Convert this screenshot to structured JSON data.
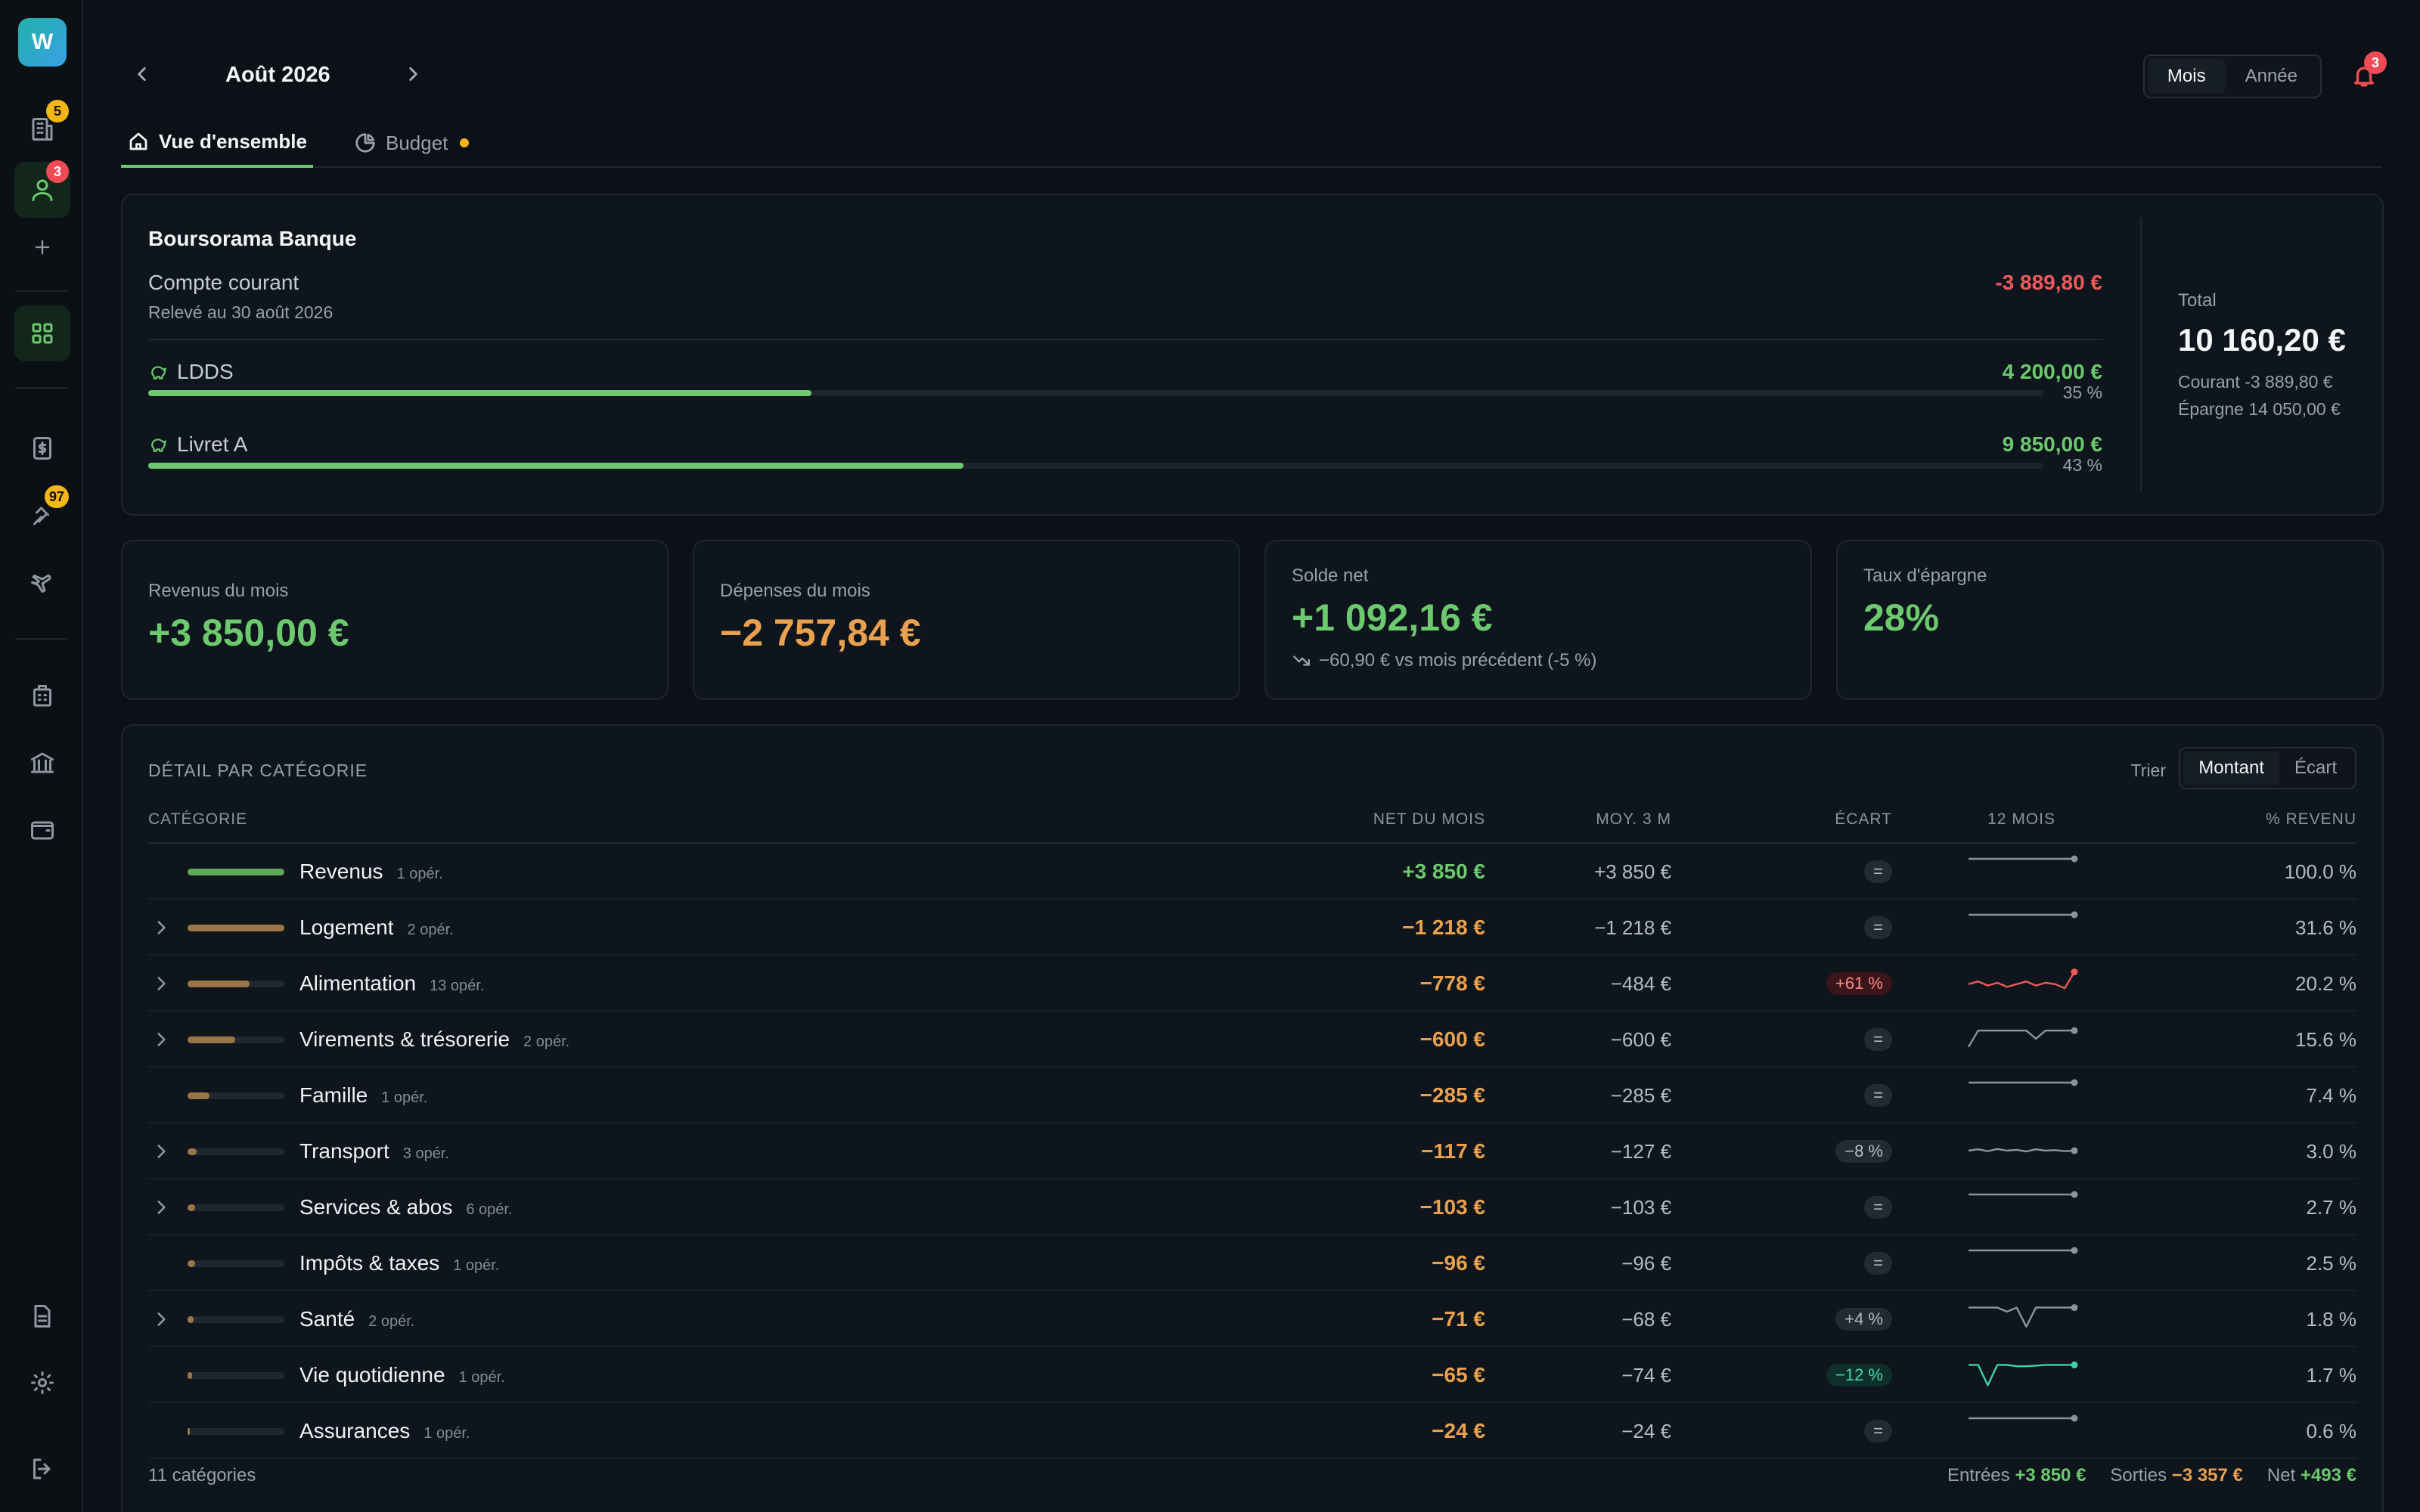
{
  "sidebar": {
    "logo": "W",
    "badges": {
      "buildings": "5",
      "people": "3",
      "travel": "97"
    }
  },
  "header": {
    "month": "Août 2026",
    "period_options": [
      "Mois",
      "Année"
    ],
    "notif_count": "3"
  },
  "tabs": [
    {
      "label": "Vue d'ensemble",
      "active": true
    },
    {
      "label": "Budget",
      "active": false
    }
  ],
  "accounts": {
    "bank": "Boursorama Banque",
    "current": {
      "name": "Compte courant",
      "sub": "Relevé au 30 août 2026",
      "value": "-3 889,80 €"
    },
    "savings": [
      {
        "name": "LDDS",
        "value": "4 200,00 €",
        "pct": "35 %",
        "fill": 0.35
      },
      {
        "name": "Livret A",
        "value": "9 850,00 €",
        "pct": "43 %",
        "fill": 0.43
      }
    ],
    "total": {
      "label": "Total",
      "value": "10 160,20 €",
      "courant": "Courant -3 889,80 €",
      "epargne": "Épargne 14 050,00 €"
    }
  },
  "kpis": [
    {
      "label": "Revenus du mois",
      "value": "+3 850,00 €"
    },
    {
      "label": "Dépenses du mois",
      "value": "−2 757,84 €"
    },
    {
      "label": "Solde net",
      "value": "+1 092,16 €",
      "sub": "−60,90 € vs mois précédent (-5 %)"
    },
    {
      "label": "Taux d'épargne",
      "value": "28%"
    }
  ],
  "categories": {
    "title": "DÉTAIL PAR CATÉGORIE",
    "sort_label": "Trier",
    "sort_options": [
      "Montant",
      "Écart"
    ],
    "headers": [
      "CATÉGORIE",
      "NET DU MOIS",
      "MOY. 3 M",
      "ÉCART",
      "12 MOIS",
      "% REVENU"
    ],
    "rows": [
      {
        "name": "Revenus",
        "ops": "1 opér.",
        "net": "+3 850 €",
        "avg": "+3 850 €",
        "gap": "=",
        "rev": "100.0 %",
        "bar": 1.0,
        "expandable": false,
        "gapType": "neutral",
        "spark": [
          1,
          1,
          1,
          1,
          1,
          1,
          1,
          1,
          1,
          1,
          1,
          1
        ]
      },
      {
        "name": "Logement",
        "ops": "2 opér.",
        "net": "−1 218 €",
        "avg": "−1 218 €",
        "gap": "=",
        "rev": "31.6 %",
        "bar": 1.0,
        "expandable": true,
        "gapType": "neutral",
        "spark": [
          1,
          1,
          1,
          1,
          1,
          1,
          1,
          1,
          1,
          1,
          1,
          1
        ]
      },
      {
        "name": "Alimentation",
        "ops": "13 opér.",
        "net": "−778 €",
        "avg": "−484 €",
        "gap": "+61 %",
        "rev": "20.2 %",
        "bar": 0.64,
        "expandable": true,
        "gapType": "up",
        "spark": [
          0.45,
          0.55,
          0.4,
          0.5,
          0.35,
          0.45,
          0.55,
          0.4,
          0.5,
          0.45,
          0.3,
          0.9
        ]
      },
      {
        "name": "Virements & trésorerie",
        "ops": "2 opér.",
        "net": "−600 €",
        "avg": "−600 €",
        "gap": "=",
        "rev": "15.6 %",
        "bar": 0.49,
        "expandable": true,
        "gapType": "neutral",
        "spark": [
          0.2,
          0.8,
          0.8,
          0.8,
          0.8,
          0.8,
          0.8,
          0.5,
          0.8,
          0.8,
          0.8,
          0.8
        ]
      },
      {
        "name": "Famille",
        "ops": "1 opér.",
        "net": "−285 €",
        "avg": "−285 €",
        "gap": "=",
        "rev": "7.4 %",
        "bar": 0.23,
        "expandable": false,
        "gapType": "neutral",
        "spark": [
          1,
          1,
          1,
          1,
          1,
          1,
          1,
          1,
          1,
          1,
          1,
          1
        ]
      },
      {
        "name": "Transport",
        "ops": "3 opér.",
        "net": "−117 €",
        "avg": "−127 €",
        "gap": "−8 %",
        "rev": "3.0 %",
        "bar": 0.09,
        "expandable": true,
        "gapType": "neutral",
        "spark": [
          0.5,
          0.55,
          0.48,
          0.56,
          0.5,
          0.53,
          0.47,
          0.55,
          0.5,
          0.52,
          0.48,
          0.5
        ]
      },
      {
        "name": "Services & abos",
        "ops": "6 opér.",
        "net": "−103 €",
        "avg": "−103 €",
        "gap": "=",
        "rev": "2.7 %",
        "bar": 0.08,
        "expandable": true,
        "gapType": "neutral",
        "spark": [
          1,
          1,
          1,
          1,
          1,
          1,
          1,
          1,
          1,
          1,
          1,
          1
        ]
      },
      {
        "name": "Impôts & taxes",
        "ops": "1 opér.",
        "net": "−96 €",
        "avg": "−96 €",
        "gap": "=",
        "rev": "2.5 %",
        "bar": 0.08,
        "expandable": false,
        "gapType": "neutral",
        "spark": [
          1,
          1,
          1,
          1,
          1,
          1,
          1,
          1,
          1,
          1,
          1,
          1
        ]
      },
      {
        "name": "Santé",
        "ops": "2 opér.",
        "net": "−71 €",
        "avg": "−68 €",
        "gap": "+4 %",
        "rev": "1.8 %",
        "bar": 0.06,
        "expandable": true,
        "gapType": "neutral",
        "spark": [
          0.9,
          0.9,
          0.9,
          0.9,
          0.75,
          0.9,
          0.2,
          0.9,
          0.9,
          0.9,
          0.9,
          0.9
        ]
      },
      {
        "name": "Vie quotidienne",
        "ops": "1 opér.",
        "net": "−65 €",
        "avg": "−74 €",
        "gap": "−12 %",
        "rev": "1.7 %",
        "bar": 0.05,
        "expandable": false,
        "gapType": "dn",
        "spark": [
          0.85,
          0.85,
          0.1,
          0.85,
          0.85,
          0.8,
          0.8,
          0.82,
          0.85,
          0.85,
          0.85,
          0.85
        ]
      },
      {
        "name": "Assurances",
        "ops": "1 opér.",
        "net": "−24 €",
        "avg": "−24 €",
        "gap": "=",
        "rev": "0.6 %",
        "bar": 0.02,
        "expandable": false,
        "gapType": "neutral",
        "spark": [
          1,
          1,
          1,
          1,
          1,
          1,
          1,
          1,
          1,
          1,
          1,
          1
        ]
      }
    ],
    "footer": {
      "count": "11 catégories",
      "entrees_label": "Entrées",
      "entrees": "+3 850 €",
      "sorties_label": "Sorties",
      "sorties": "−3 357 €",
      "net_label": "Net",
      "net": "+493 €"
    }
  },
  "colors": {
    "accent": "#6cc96e",
    "expense": "#e9a14f",
    "negative": "#ee5a5a",
    "bar_income": "#5fa857",
    "bar_expense": "#9a7548"
  }
}
